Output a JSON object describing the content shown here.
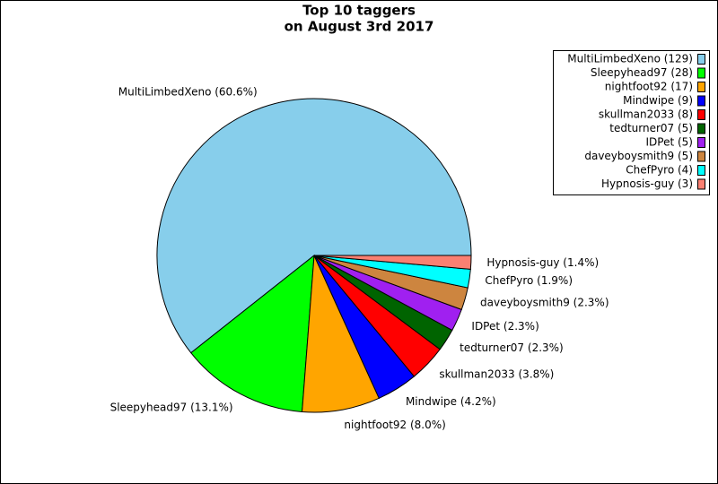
{
  "chart_data": {
    "type": "pie",
    "title": "Top 10 taggers",
    "subtitle": "on August 3rd 2017",
    "categories": [
      "MultiLimbedXeno",
      "Sleepyhead97",
      "nightfoot92",
      "Mindwipe",
      "skullman2033",
      "tedturner07",
      "IDPet",
      "daveyboysmith9",
      "ChefPyro",
      "Hypnosis-guy"
    ],
    "values": [
      60.6,
      13.1,
      8.0,
      4.2,
      3.8,
      2.3,
      2.3,
      2.3,
      1.9,
      1.4
    ],
    "value_labels": [
      "MultiLimbedXeno (60.6%)",
      "Sleepyhead97 (13.1%)",
      "nightfoot92 (8.0%)",
      "Mindwipe (4.2%)",
      "skullman2033 (3.8%)",
      "tedturner07 (2.3%)",
      "IDPet (2.3%)",
      "daveyboysmith9 (2.3%)",
      "ChefPyro (1.9%)",
      "Hypnosis-guy (1.4%)"
    ],
    "legend_labels": [
      "MultiLimbedXeno (129)",
      "Sleepyhead97 (28)",
      "nightfoot92 (17)",
      "Mindwipe (9)",
      "skullman2033 (8)",
      "tedturner07 (5)",
      "IDPet (5)",
      "daveyboysmith9 (5)",
      "ChefPyro (4)",
      "Hypnosis-guy (3)"
    ],
    "colors": [
      "#87ceeb",
      "#00ff00",
      "#ffa500",
      "#0000ff",
      "#ff0000",
      "#006400",
      "#a020f0",
      "#cd853f",
      "#00ffff",
      "#fa8072"
    ],
    "legend": "upper right"
  }
}
